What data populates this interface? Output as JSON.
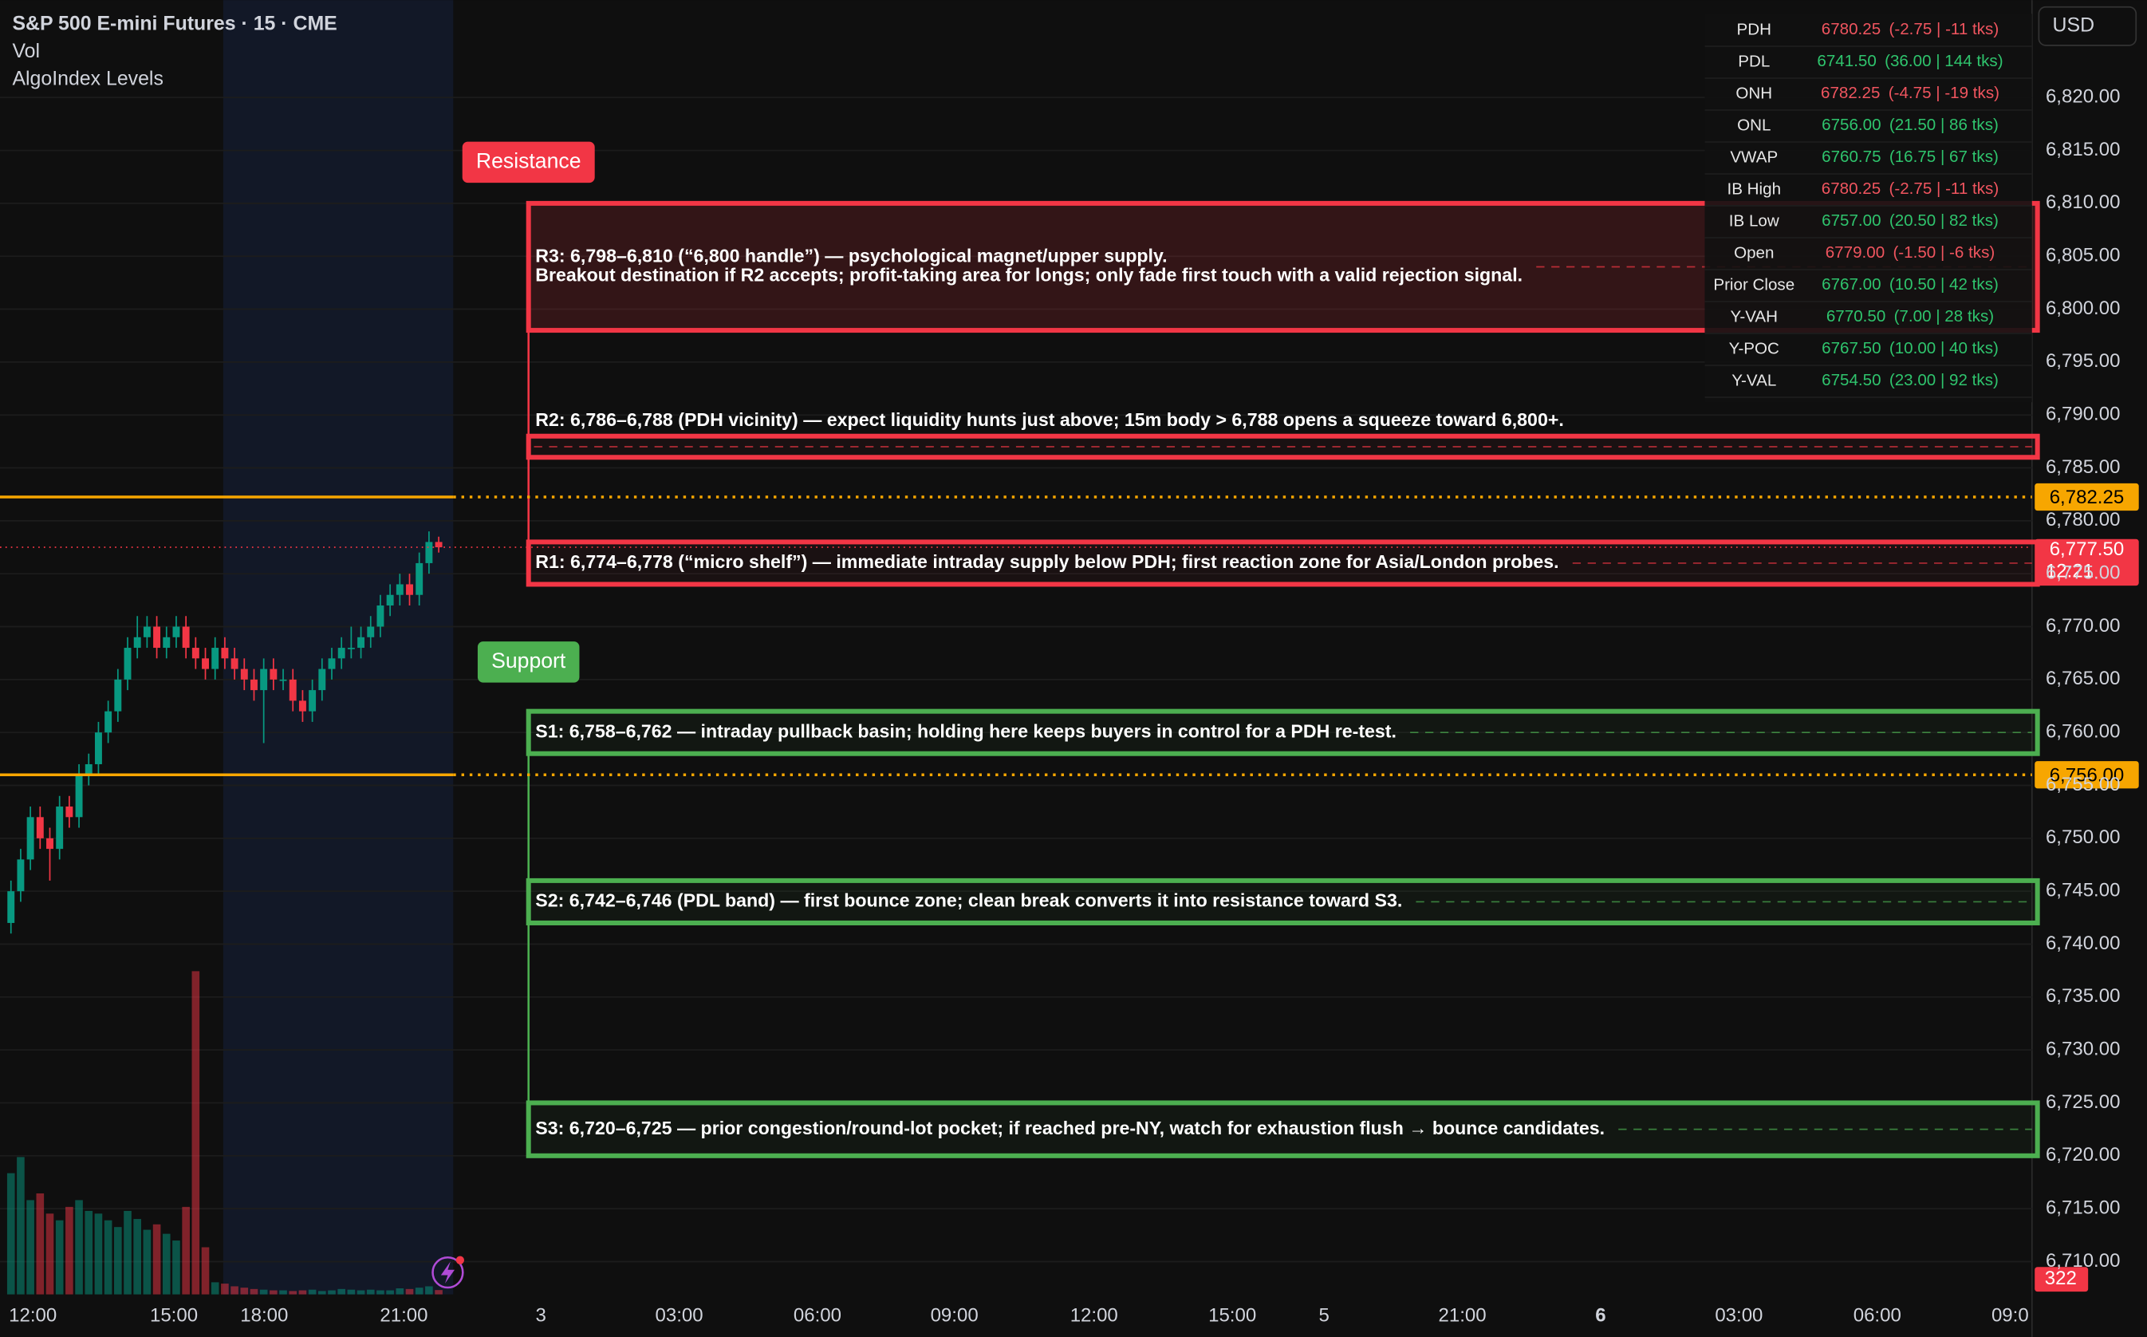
{
  "header": {
    "title": "S&P 500 E-mini Futures · 15 · CME",
    "indicators": [
      "Vol",
      "AlgoIndex Levels"
    ],
    "currency": "USD"
  },
  "chart_data": {
    "type": "candlestick",
    "x_labels": [
      "12:00",
      "15:00",
      "18:00",
      "21:00",
      "3",
      "03:00",
      "06:00",
      "09:00",
      "12:00",
      "15:00",
      "5",
      "21:00",
      "6",
      "03:00",
      "06:00",
      "09:0"
    ],
    "open": [
      6742,
      6745,
      6748,
      6752,
      6750,
      6749,
      6753,
      6752,
      6756,
      6757,
      6760,
      6762,
      6765,
      6768,
      6769,
      6770,
      6768,
      6769,
      6770,
      6768,
      6767,
      6766,
      6768,
      6767,
      6766,
      6765,
      6764,
      6766,
      6765,
      6765,
      6763,
      6762,
      6764,
      6766,
      6767,
      6768,
      6768,
      6769,
      6770,
      6772,
      6773,
      6774,
      6773,
      6776,
      6778
    ],
    "high": [
      6746,
      6749,
      6753,
      6753,
      6751,
      6754,
      6754,
      6757,
      6758,
      6761,
      6763,
      6766,
      6769,
      6771,
      6771,
      6771,
      6770,
      6771,
      6771,
      6769,
      6768,
      6769,
      6769,
      6768,
      6767,
      6766,
      6767,
      6767,
      6766,
      6766,
      6764,
      6765,
      6767,
      6768,
      6769,
      6770,
      6770,
      6771,
      6773,
      6774,
      6775,
      6775,
      6777,
      6779,
      6778.5
    ],
    "low": [
      6741,
      6744,
      6747,
      6749,
      6746,
      6748,
      6751,
      6751,
      6755,
      6756,
      6759,
      6761,
      6764,
      6767,
      6768,
      6767,
      6767,
      6768,
      6767,
      6766,
      6765,
      6765,
      6766,
      6765,
      6764,
      6763,
      6759,
      6764,
      6764,
      6762,
      6761,
      6761,
      6763,
      6765,
      6766,
      6767,
      6767,
      6768,
      6769,
      6771,
      6772,
      6772,
      6772,
      6775,
      6777
    ],
    "close": [
      6745,
      6748,
      6752,
      6750,
      6749,
      6753,
      6752,
      6756,
      6757,
      6760,
      6762,
      6765,
      6768,
      6769,
      6770,
      6768,
      6769,
      6770,
      6768,
      6767,
      6766,
      6768,
      6767,
      6766,
      6765,
      6764,
      6766,
      6765,
      6765,
      6763,
      6762,
      6764,
      6766,
      6767,
      6768,
      6768,
      6769,
      6770,
      6772,
      6773,
      6774,
      6773,
      6776,
      6778,
      6777.5
    ],
    "volume": [
      9000,
      10200,
      7000,
      7500,
      6000,
      5500,
      6500,
      7000,
      6200,
      6000,
      5500,
      5000,
      6200,
      5600,
      4800,
      5200,
      4500,
      4000,
      6500,
      24000,
      3500,
      900,
      800,
      600,
      500,
      400,
      350,
      300,
      300,
      250,
      300,
      350,
      250,
      300,
      400,
      350,
      300,
      350,
      300,
      300,
      450,
      400,
      500,
      600,
      322
    ],
    "up_color": "#089981",
    "down_color": "#f23645",
    "ylim": [
      6706.9,
      6829.2
    ],
    "volume_lim": [
      0,
      30000
    ],
    "yticks": [
      {
        "value": 6710,
        "label": "6,710.00"
      },
      {
        "value": 6715,
        "label": "6,715.00"
      },
      {
        "value": 6720,
        "label": "6,720.00"
      },
      {
        "value": 6725,
        "label": "6,725.00"
      },
      {
        "value": 6730,
        "label": "6,730.00"
      },
      {
        "value": 6735,
        "label": "6,735.00"
      },
      {
        "value": 6740,
        "label": "6,740.00"
      },
      {
        "value": 6745,
        "label": "6,745.00"
      },
      {
        "value": 6750,
        "label": "6,750.00"
      },
      {
        "value": 6755,
        "label": "6,755.00"
      },
      {
        "value": 6760,
        "label": "6,760.00"
      },
      {
        "value": 6765,
        "label": "6,765.00"
      },
      {
        "value": 6770,
        "label": "6,770.00"
      },
      {
        "value": 6775,
        "label": "6,775.00"
      },
      {
        "value": 6780,
        "label": "6,780.00"
      },
      {
        "value": 6785,
        "label": "6,785.00"
      },
      {
        "value": 6790,
        "label": "6,790.00"
      },
      {
        "value": 6795,
        "label": "6,795.00"
      },
      {
        "value": 6800,
        "label": "6,800.00"
      },
      {
        "value": 6805,
        "label": "6,805.00"
      },
      {
        "value": 6810,
        "label": "6,810.00"
      },
      {
        "value": 6815,
        "label": "6,815.00"
      },
      {
        "value": 6820,
        "label": "6,820.00"
      }
    ],
    "hlines": [
      {
        "value": 6782.25,
        "label": "6,782.25",
        "color": "#f7a600"
      },
      {
        "value": 6756,
        "label": "6,756.00",
        "color": "#f7a600"
      }
    ],
    "last_price_label": "6,777.50",
    "countdown": "12:21",
    "last_color": "#f23645",
    "zone_groups": [
      {
        "label": "Resistance",
        "color": "#f23645"
      },
      {
        "label": "Support",
        "color": "#4caf50"
      }
    ],
    "zones": [
      {
        "low": 6798,
        "high": 6810,
        "color": "#f23645",
        "label": [
          "R3: 6,798–6,810 (“6,800 handle”) — psychological magnet/upper supply.",
          "Breakout destination if R2 accepts; profit-taking area for longs; only fade first touch with a valid rejection signal."
        ]
      },
      {
        "low": 6786,
        "high": 6788,
        "color": "#f23645",
        "label": [
          "R2: 6,786–6,788 (PDH vicinity) — expect liquidity hunts just above; 15m body > 6,788 opens a squeeze toward 6,800+."
        ]
      },
      {
        "low": 6774,
        "high": 6778,
        "color": "#f23645",
        "label": [
          "R1: 6,774–6,778 (“micro shelf”) — immediate intraday supply below PDH; first reaction zone for Asia/London probes."
        ]
      },
      {
        "low": 6758,
        "high": 6762,
        "color": "#4caf50",
        "label": [
          "S1: 6,758–6,762 — intraday pullback basin; holding here keeps buyers in control for a PDH re-test."
        ]
      },
      {
        "low": 6742,
        "high": 6746,
        "color": "#4caf50",
        "label": [
          "S2: 6,742–6,746 (PDL band) — first bounce zone; clean break converts it into resistance toward S3."
        ]
      },
      {
        "low": 6720,
        "high": 6725,
        "color": "#4caf50",
        "label": [
          "S3: 6,720–6,725 — prior congestion/round-lot pocket; if reached pre-NY, watch for exhaustion flush → bounce candidates."
        ]
      }
    ],
    "levels_table": [
      {
        "label": "PDH",
        "value": "6780.25",
        "detail": "(-2.75 | -11 tks)",
        "color": "#f0555f"
      },
      {
        "label": "PDL",
        "value": "6741.50",
        "detail": "(36.00 | 144 tks)",
        "color": "#2fc46d"
      },
      {
        "label": "ONH",
        "value": "6782.25",
        "detail": "(-4.75 | -19 tks)",
        "color": "#f0555f"
      },
      {
        "label": "ONL",
        "value": "6756.00",
        "detail": "(21.50 | 86 tks)",
        "color": "#2fc46d"
      },
      {
        "label": "VWAP",
        "value": "6760.75",
        "detail": "(16.75 | 67 tks)",
        "color": "#2fc46d"
      },
      {
        "label": "IB High",
        "value": "6780.25",
        "detail": "(-2.75 | -11 tks)",
        "color": "#f0555f"
      },
      {
        "label": "IB Low",
        "value": "6757.00",
        "detail": "(20.50 | 82 tks)",
        "color": "#2fc46d"
      },
      {
        "label": "Open",
        "value": "6779.00",
        "detail": "(-1.50 | -6 tks)",
        "color": "#f0555f"
      },
      {
        "label": "Prior Close",
        "value": "6767.00",
        "detail": "(10.50 | 42 tks)",
        "color": "#2fc46d"
      },
      {
        "label": "Y-VAH",
        "value": "6770.50",
        "detail": "(7.00 | 28 tks)",
        "color": "#2fc46d"
      },
      {
        "label": "Y-POC",
        "value": "6767.50",
        "detail": "(10.00 | 40 tks)",
        "color": "#2fc46d"
      },
      {
        "label": "Y-VAL",
        "value": "6754.50",
        "detail": "(23.00 | 92 tks)",
        "color": "#2fc46d"
      }
    ]
  }
}
